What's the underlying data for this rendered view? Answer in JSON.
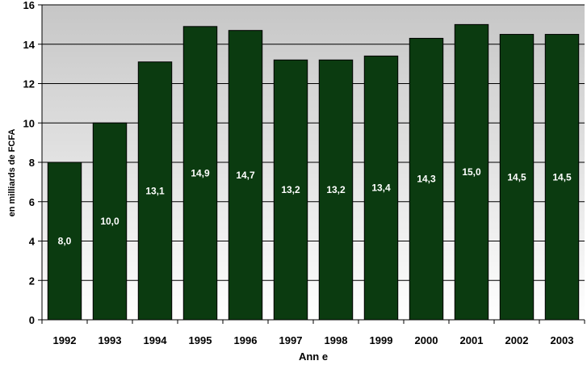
{
  "chart_data": {
    "type": "bar",
    "categories": [
      "1992",
      "1993",
      "1994",
      "1995",
      "1996",
      "1997",
      "1998",
      "1999",
      "2000",
      "2001",
      "2002",
      "2003"
    ],
    "values": [
      8.0,
      10.0,
      13.1,
      14.9,
      14.7,
      13.2,
      13.2,
      13.4,
      14.3,
      15.0,
      14.5,
      14.5
    ],
    "data_labels": [
      "8,0",
      "10,0",
      "13,1",
      "14,9",
      "14,7",
      "13,2",
      "13,2",
      "13,4",
      "14,3",
      "15,0",
      "14,5",
      "14,5"
    ],
    "xlabel": "Ann e",
    "ylabel": "en milliards de FCFA",
    "ylim": [
      0,
      16
    ],
    "yticks": [
      0,
      2,
      4,
      6,
      8,
      10,
      12,
      14,
      16
    ],
    "grid": true,
    "colors": {
      "bar": "#0b3b10",
      "plot_top": "#c6c6c6",
      "plot_bottom": "#ffffff",
      "grid": "#000000"
    }
  }
}
